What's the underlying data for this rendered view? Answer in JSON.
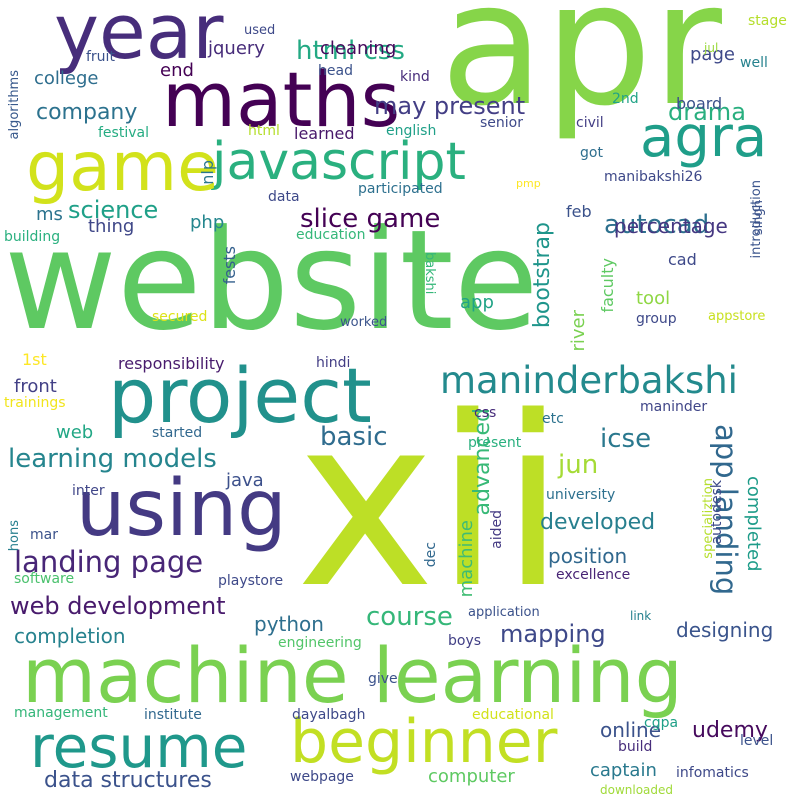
{
  "words": [
    {
      "text": "website",
      "color": "#5ec962"
    },
    {
      "text": "xii",
      "color": "#bddf26"
    },
    {
      "text": "apr",
      "color": "#86d549"
    },
    {
      "text": "machine learning",
      "color": "#7ad151"
    },
    {
      "text": "project",
      "color": "#21918c"
    },
    {
      "text": "using",
      "color": "#443a83"
    },
    {
      "text": "maths",
      "color": "#440154"
    },
    {
      "text": "year",
      "color": "#472d7b"
    },
    {
      "text": "javascript",
      "color": "#2ab07f"
    },
    {
      "text": "game",
      "color": "#d2e21b"
    },
    {
      "text": "resume",
      "color": "#1f988b"
    },
    {
      "text": "beginner",
      "color": "#c2df23"
    },
    {
      "text": "agra",
      "color": "#1f9e89"
    },
    {
      "text": "maninderbakshi",
      "color": "#238a8d"
    },
    {
      "text": "landing page",
      "color": "#482677"
    },
    {
      "text": "learning models",
      "color": "#25858e"
    },
    {
      "text": "web development",
      "color": "#481a6c"
    },
    {
      "text": "slice game",
      "color": "#440154"
    },
    {
      "text": "data structures",
      "color": "#3b528b"
    },
    {
      "text": "html css",
      "color": "#23a983"
    },
    {
      "text": "app landing",
      "color": "#31688e"
    },
    {
      "text": "autocad",
      "color": "#2d708e"
    },
    {
      "text": "course",
      "color": "#35b779"
    },
    {
      "text": "mapping",
      "color": "#3e4989"
    },
    {
      "text": "may present",
      "color": "#433e85"
    },
    {
      "text": "science",
      "color": "#1fa088"
    },
    {
      "text": "company",
      "color": "#2c728e"
    },
    {
      "text": "drama",
      "color": "#29af7f"
    },
    {
      "text": "basic",
      "color": "#2f6c8e"
    },
    {
      "text": "icse",
      "color": "#2a788e"
    },
    {
      "text": "jun",
      "color": "#a5db36"
    },
    {
      "text": "advanced",
      "color": "#38b977"
    },
    {
      "text": "machine",
      "color": "#3fbc73"
    },
    {
      "text": "developed",
      "color": "#277f8e"
    },
    {
      "text": "completed",
      "color": "#1e9c89"
    },
    {
      "text": "autodesk",
      "color": "#3e4a89"
    },
    {
      "text": "bootstrap",
      "color": "#1f958b"
    },
    {
      "text": "river",
      "color": "#7ad151"
    },
    {
      "text": "percentage",
      "color": "#453781"
    },
    {
      "text": "captain",
      "color": "#29798e"
    },
    {
      "text": "udemy",
      "color": "#460a5d"
    },
    {
      "text": "designing",
      "color": "#3a548c"
    },
    {
      "text": "computer",
      "color": "#5ec962"
    },
    {
      "text": "python",
      "color": "#2e6f8e"
    },
    {
      "text": "completion",
      "color": "#26828e"
    },
    {
      "text": "position",
      "color": "#31688e"
    },
    {
      "text": "online",
      "color": "#3b528b"
    },
    {
      "text": "front",
      "color": "#424086"
    },
    {
      "text": "college",
      "color": "#2e6e8e"
    },
    {
      "text": "cleaning",
      "color": "#46085c"
    },
    {
      "text": "jquery",
      "color": "#472c7a"
    },
    {
      "text": "end",
      "color": "#440154"
    },
    {
      "text": "page",
      "color": "#3e4989"
    },
    {
      "text": "board",
      "color": "#3b518b"
    },
    {
      "text": "ms",
      "color": "#2c738e"
    },
    {
      "text": "thing",
      "color": "#3f4788"
    },
    {
      "text": "php",
      "color": "#24868e"
    },
    {
      "text": "tool",
      "color": "#8fd744"
    },
    {
      "text": "app",
      "color": "#20a386"
    },
    {
      "text": "web",
      "color": "#22a785"
    },
    {
      "text": "java",
      "color": "#3c508b"
    },
    {
      "text": "responsibility",
      "color": "#481b6d"
    },
    {
      "text": "1st",
      "color": "#fde725"
    },
    {
      "text": "nlp",
      "color": "#2a778e"
    },
    {
      "text": "learned",
      "color": "#48186a"
    },
    {
      "text": "fests",
      "color": "#34608d"
    },
    {
      "text": "faculty",
      "color": "#5ec962"
    },
    {
      "text": "feb",
      "color": "#3b528b"
    },
    {
      "text": "cad",
      "color": "#3e4989"
    },
    {
      "text": "secured",
      "color": "#dde318"
    },
    {
      "text": "trainings",
      "color": "#f1e51d"
    },
    {
      "text": "hindi",
      "color": "#433e85"
    },
    {
      "text": "worked",
      "color": "#3a538b"
    },
    {
      "text": "css",
      "color": "#472c7a"
    },
    {
      "text": "etc",
      "color": "#2c728e"
    },
    {
      "text": "maninder",
      "color": "#404688"
    },
    {
      "text": "present",
      "color": "#2ab07f"
    },
    {
      "text": "started",
      "color": "#31688e"
    },
    {
      "text": "inter",
      "color": "#404688"
    },
    {
      "text": "mar",
      "color": "#3b528b"
    },
    {
      "text": "hons",
      "color": "#277f8e"
    },
    {
      "text": "software",
      "color": "#4ac16d"
    },
    {
      "text": "playstore",
      "color": "#3e4989"
    },
    {
      "text": "university",
      "color": "#2d708e"
    },
    {
      "text": "aided",
      "color": "#443a83"
    },
    {
      "text": "dec",
      "color": "#31688e"
    },
    {
      "text": "specializtion",
      "color": "#b5de2b"
    },
    {
      "text": "excellence",
      "color": "#482475"
    },
    {
      "text": "application",
      "color": "#3b528b"
    },
    {
      "text": "link",
      "color": "#26818e"
    },
    {
      "text": "boys",
      "color": "#424086"
    },
    {
      "text": "engineering",
      "color": "#52c569"
    },
    {
      "text": "give",
      "color": "#3b528b"
    },
    {
      "text": "management",
      "color": "#34b679"
    },
    {
      "text": "institute",
      "color": "#31688e"
    },
    {
      "text": "dayalbagh",
      "color": "#3e4989"
    },
    {
      "text": "educational",
      "color": "#d2e21b"
    },
    {
      "text": "cgpa",
      "color": "#1fa088"
    },
    {
      "text": "build",
      "color": "#472d7b"
    },
    {
      "text": "level",
      "color": "#3b528b"
    },
    {
      "text": "webpage",
      "color": "#3e4989"
    },
    {
      "text": "infomatics",
      "color": "#3e4989"
    },
    {
      "text": "downloaded",
      "color": "#a0da39"
    },
    {
      "text": "used",
      "color": "#3e4989"
    },
    {
      "text": "fruit",
      "color": "#3b528b"
    },
    {
      "text": "head",
      "color": "#3b528b"
    },
    {
      "text": "kind",
      "color": "#472c7a"
    },
    {
      "text": "stage",
      "color": "#b5de2b"
    },
    {
      "text": "jul",
      "color": "#9bd93c"
    },
    {
      "text": "well",
      "color": "#26828e"
    },
    {
      "text": "2nd",
      "color": "#20a386"
    },
    {
      "text": "senior",
      "color": "#3e4989"
    },
    {
      "text": "civil",
      "color": "#433e85"
    },
    {
      "text": "introduction",
      "color": "#3a548c"
    },
    {
      "text": "algorithms",
      "color": "#38598c"
    },
    {
      "text": "festival",
      "color": "#25ac82"
    },
    {
      "text": "html",
      "color": "#b5de2b"
    },
    {
      "text": "english",
      "color": "#1fa088"
    },
    {
      "text": "got",
      "color": "#2e6e8e"
    },
    {
      "text": "data",
      "color": "#3e4989"
    },
    {
      "text": "participated",
      "color": "#2d708e"
    },
    {
      "text": "pmp",
      "color": "#fde725"
    },
    {
      "text": "manibakshi26",
      "color": "#3e4989"
    },
    {
      "text": "singh",
      "color": "#3b528b"
    },
    {
      "text": "education",
      "color": "#35b779"
    },
    {
      "text": "building",
      "color": "#2ab07f"
    },
    {
      "text": "bakshi",
      "color": "#35b779"
    },
    {
      "text": "group",
      "color": "#3e4989"
    },
    {
      "text": "appstore",
      "color": "#c8e020"
    }
  ]
}
